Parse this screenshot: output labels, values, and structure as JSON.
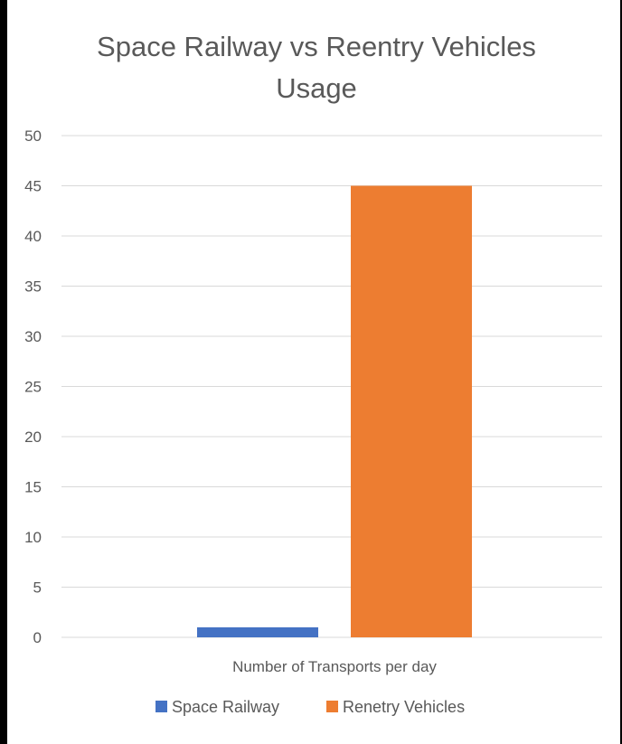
{
  "chart_data": {
    "type": "bar",
    "title_lines": [
      "Space Railway vs Reentry Vehicles",
      "Usage"
    ],
    "categories": [
      "Number of Transports per day"
    ],
    "series": [
      {
        "name": "Space Railway",
        "values": [
          1
        ],
        "color": "#4472C4"
      },
      {
        "name": "Renetry Vehicles",
        "values": [
          45
        ],
        "color": "#ED7D31"
      }
    ],
    "xlabel": "",
    "ylabel": "",
    "ylim": [
      0,
      50
    ],
    "yticks": [
      0,
      5,
      10,
      15,
      20,
      25,
      30,
      35,
      40,
      45,
      50
    ],
    "grid": true,
    "legend": "bottom"
  }
}
